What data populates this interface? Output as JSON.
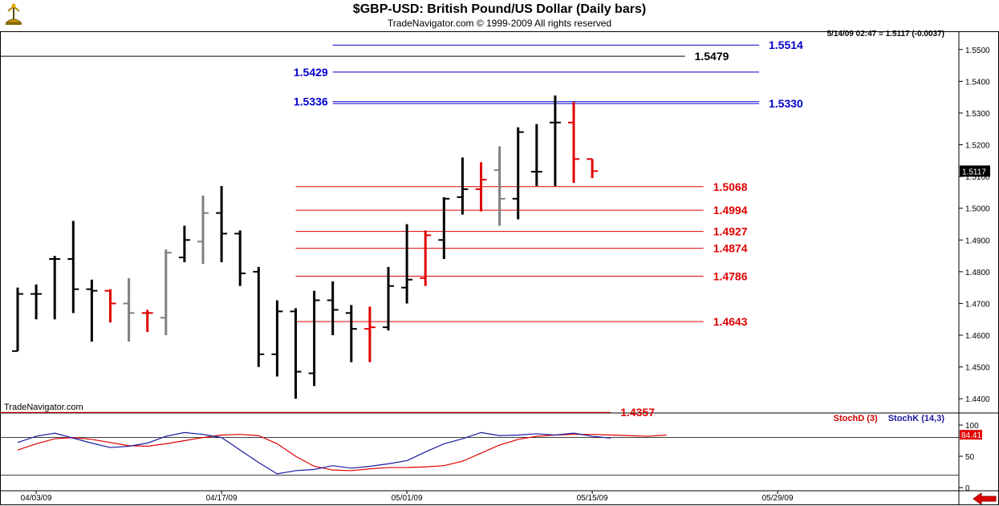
{
  "header": {
    "title": "$GBP-USD:  British Pound/US Dollar  (Daily bars)",
    "subtitle": "TradeNavigator.com © 1999-2009 All rights reserved",
    "readout": "5/14/09 02:47 = 1.5117 (-0.0037)",
    "brand": "TradeNavigator.com",
    "logo_icon": "trade-navigator-logo-icon"
  },
  "colors": {
    "up": "#000000",
    "down": "#e00000",
    "neutral": "#808080",
    "blue_level": "#0000cc",
    "red_level": "#e00000",
    "stoch_d": "#e00000",
    "stoch_k": "#1a1aa0"
  },
  "chart_data": [
    {
      "type": "ohlc",
      "title": "$GBP-USD:  British Pound/US Dollar  (Daily bars)",
      "ylim": [
        1.4355,
        1.5555
      ],
      "y_ticks": [
        "1.5500",
        "1.5400",
        "1.5300",
        "1.5200",
        "1.5100",
        "1.5000",
        "1.4900",
        "1.4800",
        "1.4700",
        "1.4600",
        "1.4500",
        "1.4400"
      ],
      "current_price_label": "1.5117",
      "x_labels": [
        {
          "label": "04/03/09",
          "index": 1
        },
        {
          "label": "04/17/09",
          "index": 11
        },
        {
          "label": "05/01/09",
          "index": 21
        },
        {
          "label": "05/15/09",
          "index": 31
        },
        {
          "label": "05/29/09",
          "index": 41
        }
      ],
      "bars": [
        {
          "o": 1.455,
          "h": 1.475,
          "l": 1.455,
          "c": 1.473,
          "color": "up"
        },
        {
          "o": 1.473,
          "h": 1.476,
          "l": 1.465,
          "c": 1.473,
          "color": "up"
        },
        {
          "o": 1.484,
          "h": 1.485,
          "l": 1.465,
          "c": 1.484,
          "color": "up"
        },
        {
          "o": 1.484,
          "h": 1.496,
          "l": 1.467,
          "c": 1.4745,
          "color": "up"
        },
        {
          "o": 1.4745,
          "h": 1.4775,
          "l": 1.458,
          "c": 1.474,
          "color": "up"
        },
        {
          "o": 1.474,
          "h": 1.4745,
          "l": 1.464,
          "c": 1.47,
          "color": "down"
        },
        {
          "o": 1.47,
          "h": 1.478,
          "l": 1.458,
          "c": 1.467,
          "color": "neutral"
        },
        {
          "o": 1.467,
          "h": 1.468,
          "l": 1.461,
          "c": 1.467,
          "color": "down"
        },
        {
          "o": 1.4655,
          "h": 1.487,
          "l": 1.46,
          "c": 1.486,
          "color": "neutral"
        },
        {
          "o": 1.4845,
          "h": 1.4945,
          "l": 1.483,
          "c": 1.49,
          "color": "up"
        },
        {
          "o": 1.4895,
          "h": 1.504,
          "l": 1.4825,
          "c": 1.4985,
          "color": "neutral"
        },
        {
          "o": 1.4985,
          "h": 1.507,
          "l": 1.483,
          "c": 1.492,
          "color": "up"
        },
        {
          "o": 1.492,
          "h": 1.493,
          "l": 1.4755,
          "c": 1.4795,
          "color": "up"
        },
        {
          "o": 1.48,
          "h": 1.4815,
          "l": 1.45,
          "c": 1.454,
          "color": "up"
        },
        {
          "o": 1.454,
          "h": 1.471,
          "l": 1.447,
          "c": 1.4675,
          "color": "up"
        },
        {
          "o": 1.4675,
          "h": 1.4685,
          "l": 1.44,
          "c": 1.4485,
          "color": "up"
        },
        {
          "o": 1.448,
          "h": 1.474,
          "l": 1.444,
          "c": 1.471,
          "color": "up"
        },
        {
          "o": 1.471,
          "h": 1.477,
          "l": 1.46,
          "c": 1.468,
          "color": "up"
        },
        {
          "o": 1.467,
          "h": 1.4695,
          "l": 1.4515,
          "c": 1.462,
          "color": "up"
        },
        {
          "o": 1.462,
          "h": 1.469,
          "l": 1.4515,
          "c": 1.4625,
          "color": "down"
        },
        {
          "o": 1.4625,
          "h": 1.4815,
          "l": 1.4615,
          "c": 1.4755,
          "color": "up"
        },
        {
          "o": 1.475,
          "h": 1.495,
          "l": 1.47,
          "c": 1.4775,
          "color": "up"
        },
        {
          "o": 1.478,
          "h": 1.493,
          "l": 1.4755,
          "c": 1.4915,
          "color": "down"
        },
        {
          "o": 1.49,
          "h": 1.5035,
          "l": 1.484,
          "c": 1.503,
          "color": "up"
        },
        {
          "o": 1.5035,
          "h": 1.516,
          "l": 1.498,
          "c": 1.506,
          "color": "up"
        },
        {
          "o": 1.506,
          "h": 1.5145,
          "l": 1.499,
          "c": 1.509,
          "color": "down"
        },
        {
          "o": 1.512,
          "h": 1.5195,
          "l": 1.4945,
          "c": 1.503,
          "color": "neutral"
        },
        {
          "o": 1.503,
          "h": 1.5255,
          "l": 1.4965,
          "c": 1.524,
          "color": "up"
        },
        {
          "o": 1.5115,
          "h": 1.5265,
          "l": 1.507,
          "c": 1.5115,
          "color": "up"
        },
        {
          "o": 1.527,
          "h": 1.5355,
          "l": 1.507,
          "c": 1.527,
          "color": "up"
        },
        {
          "o": 1.527,
          "h": 1.5335,
          "l": 1.508,
          "c": 1.5155,
          "color": "down"
        },
        {
          "o": 1.5155,
          "h": 1.5155,
          "l": 1.5095,
          "c": 1.5117,
          "color": "down"
        }
      ],
      "levels": [
        {
          "value": 1.5514,
          "label": "1.5514",
          "color": "blue",
          "x_from": 17,
          "x_to": 40,
          "label_side": "right"
        },
        {
          "value": 1.5479,
          "label": "1.5479",
          "color": "black",
          "x_from": -1,
          "x_to": 36,
          "label_side": "right"
        },
        {
          "value": 1.5429,
          "label": "1.5429",
          "color": "blue",
          "x_from": 17,
          "x_to": 40,
          "label_side": "left"
        },
        {
          "value": 1.5336,
          "label": "1.5336",
          "color": "blue",
          "x_from": 17,
          "x_to": 40,
          "label_side": "left"
        },
        {
          "value": 1.533,
          "label": "1.5330",
          "color": "blue",
          "x_from": 17,
          "x_to": 40,
          "label_side": "right"
        },
        {
          "value": 1.5068,
          "label": "1.5068",
          "color": "red",
          "x_from": 15,
          "x_to": 37,
          "label_side": "right"
        },
        {
          "value": 1.4994,
          "label": "1.4994",
          "color": "red",
          "x_from": 15,
          "x_to": 37,
          "label_side": "right"
        },
        {
          "value": 1.4927,
          "label": "1.4927",
          "color": "red",
          "x_from": 15,
          "x_to": 37,
          "label_side": "right"
        },
        {
          "value": 1.4874,
          "label": "1.4874",
          "color": "red",
          "x_from": 15,
          "x_to": 37,
          "label_side": "right"
        },
        {
          "value": 1.4786,
          "label": "1.4786",
          "color": "red",
          "x_from": 15,
          "x_to": 37,
          "label_side": "right"
        },
        {
          "value": 1.4643,
          "label": "1.4643",
          "color": "red",
          "x_from": 15,
          "x_to": 37,
          "label_side": "right"
        },
        {
          "value": 1.4357,
          "label": "1.4357",
          "color": "red",
          "x_from": -1,
          "x_to": 32,
          "label_side": "right"
        }
      ]
    },
    {
      "type": "line",
      "ylim": [
        0,
        100
      ],
      "y_ticks": [
        "100",
        "50",
        "0"
      ],
      "reference_lines": [
        80,
        20
      ],
      "current_value_label": "84.41",
      "legend": [
        "StochD (3)",
        "StochK (14,3)"
      ],
      "series": [
        {
          "name": "StochD (3)",
          "color": "red",
          "values": [
            60,
            70,
            78,
            80,
            77,
            72,
            67,
            66,
            70,
            75,
            80,
            84,
            85,
            83,
            70,
            50,
            34,
            28,
            27,
            30,
            32,
            32,
            33,
            35,
            42,
            55,
            68,
            77,
            82,
            84,
            85,
            85,
            84,
            83,
            82,
            84
          ]
        },
        {
          "name": "StochK (14,3)",
          "color": "blue",
          "values": [
            72,
            82,
            87,
            79,
            71,
            64,
            66,
            71,
            82,
            88,
            85,
            80,
            60,
            40,
            22,
            27,
            29,
            35,
            31,
            34,
            38,
            43,
            57,
            70,
            78,
            88,
            83,
            84,
            86,
            84,
            87,
            82,
            79
          ]
        }
      ]
    }
  ]
}
